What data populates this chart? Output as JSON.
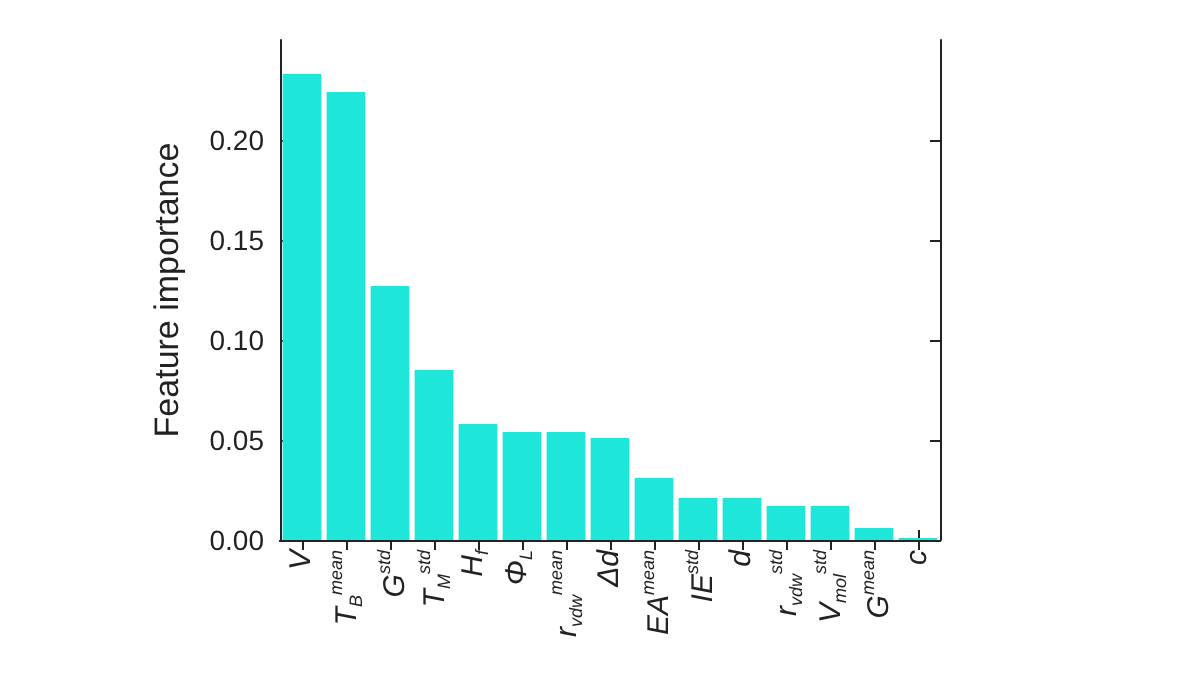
{
  "chart_data": {
    "type": "bar",
    "ylabel": "Feature importance",
    "categories": [
      "V",
      "T$_{B}$$^{mean}$",
      "G$^{std}$",
      "T$_{M}$$^{std}$",
      "H$_{f}$",
      "Φ$_{L}$",
      "r$_{vdw}$$^{mean}$",
      "Δd",
      "EA$^{mean}$",
      "IE$^{std}$",
      "d",
      "r$_{vdw}$$^{std}$",
      "V$_{mol}$$^{std}$",
      "G$^{mean}$",
      "c"
    ],
    "values": [
      0.233,
      0.224,
      0.127,
      0.085,
      0.058,
      0.054,
      0.054,
      0.051,
      0.031,
      0.021,
      0.021,
      0.017,
      0.017,
      0.006,
      0.001
    ],
    "color": "#1ee6d9",
    "ylim": [
      0,
      0.25
    ],
    "yticks": [
      {
        "value": 0,
        "label": "0.00"
      },
      {
        "value": 0.05,
        "label": "0.05"
      },
      {
        "value": 0.1,
        "label": "0.10"
      },
      {
        "value": 0.15,
        "label": "0.15"
      },
      {
        "value": 0.2,
        "label": "0.20"
      }
    ],
    "grid": false
  }
}
